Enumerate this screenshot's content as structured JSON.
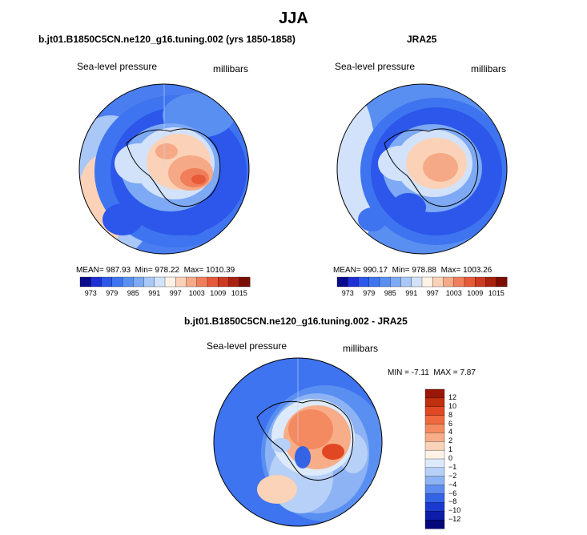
{
  "main_title": "JJA",
  "panels": [
    {
      "title": "b.jt01.B1850C5CN.ne120_g16.tuning.002 (yrs 1850-1858)",
      "variable": "Sea-level pressure",
      "units": "millibars",
      "mean_label": "MEAN=",
      "mean": "987.93",
      "min_label": "Min=",
      "min": "978.22",
      "max_label": "Max=",
      "max": "1010.39"
    },
    {
      "title": "JRA25",
      "variable": "Sea-level pressure",
      "units": "millibars",
      "mean_label": "MEAN=",
      "mean": "990.17",
      "min_label": "Min=",
      "min": "978.88",
      "max_label": "Max=",
      "max": "1003.26"
    },
    {
      "title": "b.jt01.B1850C5CN.ne120_g16.tuning.002 - JRA25",
      "variable": "Sea-level pressure",
      "units": "millibars",
      "min_label": "MIN =",
      "min": "-7.11",
      "max_label": "MAX =",
      "max": "7.87"
    }
  ],
  "colorbar_abs": {
    "tick_labels": [
      "973",
      "979",
      "985",
      "991",
      "997",
      "1003",
      "1009",
      "1015"
    ],
    "colors": [
      "#0a0a8c",
      "#1f2fd6",
      "#2c57ea",
      "#3f74f0",
      "#5a8ff2",
      "#7da9f5",
      "#a9c7f7",
      "#d2e2fa",
      "#fff2e6",
      "#fbd2b8",
      "#f6a986",
      "#f17e5a",
      "#e65a3a",
      "#cc3a22",
      "#a8220f",
      "#7a0d04"
    ]
  },
  "colorbar_diff": {
    "tick_labels": [
      "12",
      "10",
      "8",
      "6",
      "4",
      "2",
      "1",
      "0",
      "−1",
      "−2",
      "−4",
      "−6",
      "−8",
      "−10",
      "−12"
    ],
    "colors": [
      "#9a1707",
      "#c0300f",
      "#e14722",
      "#f06a3f",
      "#f48a5f",
      "#f7ad87",
      "#fbd3b9",
      "#fff2e6",
      "#ddeafc",
      "#b7d0f8",
      "#8db3f4",
      "#5e8cf0",
      "#3463e6",
      "#1a3ad0",
      "#0c1ea8",
      "#05087a"
    ]
  },
  "chart_data": [
    {
      "type": "heatmap",
      "title": "b.jt01.B1850C5CN.ne120_g16.tuning.002 (yrs 1850-1858)",
      "field": "Sea-level pressure",
      "units": "millibars",
      "projection": "south-polar stereographic",
      "season": "JJA",
      "mean": 987.93,
      "min": 978.22,
      "max": 1010.39,
      "contour_levels": [
        973,
        979,
        985,
        991,
        997,
        1003,
        1009,
        1015
      ]
    },
    {
      "type": "heatmap",
      "title": "JRA25",
      "field": "Sea-level pressure",
      "units": "millibars",
      "projection": "south-polar stereographic",
      "season": "JJA",
      "mean": 990.17,
      "min": 978.88,
      "max": 1003.26,
      "contour_levels": [
        973,
        979,
        985,
        991,
        997,
        1003,
        1009,
        1015
      ]
    },
    {
      "type": "heatmap",
      "title": "b.jt01.B1850C5CN.ne120_g16.tuning.002 - JRA25",
      "field": "Sea-level pressure difference",
      "units": "millibars",
      "projection": "south-polar stereographic",
      "season": "JJA",
      "min": -7.11,
      "max": 7.87,
      "contour_levels": [
        -12,
        -10,
        -8,
        -6,
        -4,
        -2,
        -1,
        0,
        1,
        2,
        4,
        6,
        8,
        10,
        12
      ]
    }
  ]
}
